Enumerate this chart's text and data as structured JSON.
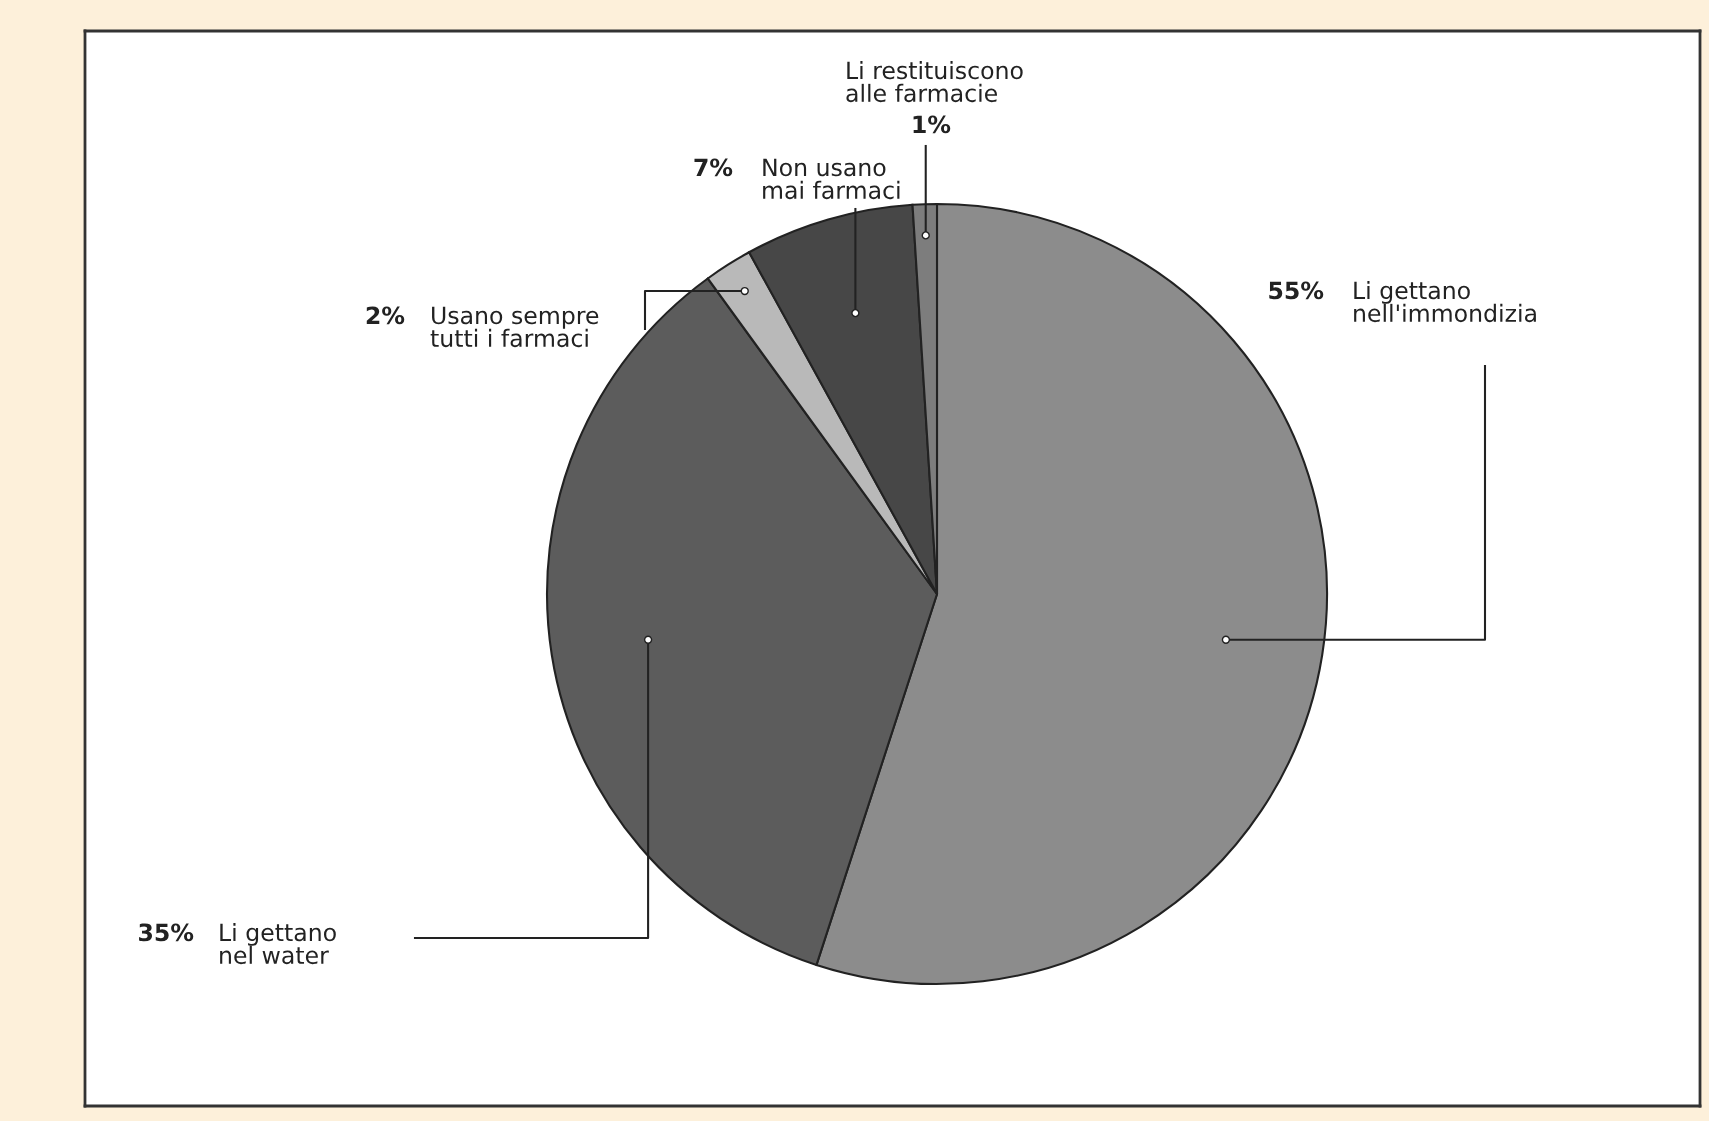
{
  "chart_data": {
    "type": "pie",
    "categories": [
      "Li gettano\nnell'immondizia",
      "Li gettano\nnel water",
      "Usano sempre\ntutti i farmaci",
      "Non usano\nmai farmaci",
      "Li restituiscono\nalle farmacie"
    ],
    "values": [
      55,
      35,
      2,
      7,
      1
    ],
    "value_labels": [
      "55%",
      "35%",
      "2%",
      "7%",
      "1%"
    ],
    "colors": [
      "#8c8c8c",
      "#5c5c5c",
      "#b9b9b9",
      "#474747",
      "#7d7d7d"
    ]
  }
}
